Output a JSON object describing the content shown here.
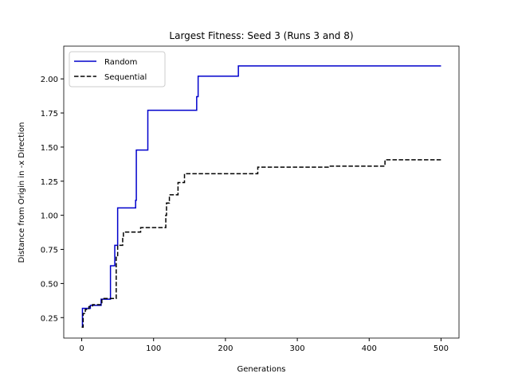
{
  "chart_data": {
    "type": "line",
    "drawstyle": "steps-post",
    "title": "Largest Fitness: Seed 3 (Runs 3 and 8)",
    "xlabel": "Generations",
    "ylabel": "Distance from Origin in -x Direction",
    "xlim": [
      -25,
      525
    ],
    "xticks": [
      0,
      100,
      200,
      300,
      400,
      500
    ],
    "ylim": [
      0.1,
      2.24
    ],
    "yticks": [
      0.25,
      {
        "value": 0.5,
        "label": "0.50"
      },
      0.75,
      {
        "value": 1.0,
        "label": "1.00"
      },
      1.25,
      {
        "value": 1.5,
        "label": "1.50"
      },
      1.75,
      {
        "value": 2.0,
        "label": "2.00"
      }
    ],
    "legend": "upper left",
    "series": [
      {
        "name": "Random",
        "color": "#0000cc",
        "linestyle": "solid",
        "x": [
          0,
          1,
          12,
          27,
          40,
          46,
          50,
          75,
          76,
          92,
          160,
          162,
          218,
          500
        ],
        "values": [
          0.18,
          0.318,
          0.34,
          0.385,
          0.63,
          0.78,
          1.054,
          1.11,
          1.478,
          1.77,
          1.87,
          2.02,
          2.095,
          2.095
        ]
      },
      {
        "name": "Sequential",
        "color": "#000000",
        "linestyle": "dashed",
        "x": [
          0,
          2,
          5,
          10,
          15,
          28,
          47,
          48,
          50,
          57,
          58,
          82,
          117,
          118,
          122,
          134,
          143,
          245,
          343,
          422,
          500
        ],
        "values": [
          0.18,
          0.28,
          0.31,
          0.33,
          0.345,
          0.39,
          0.39,
          0.7,
          0.78,
          0.84,
          0.877,
          0.91,
          1.0,
          1.09,
          1.15,
          1.24,
          1.305,
          1.353,
          1.36,
          1.407,
          1.407
        ]
      }
    ]
  }
}
